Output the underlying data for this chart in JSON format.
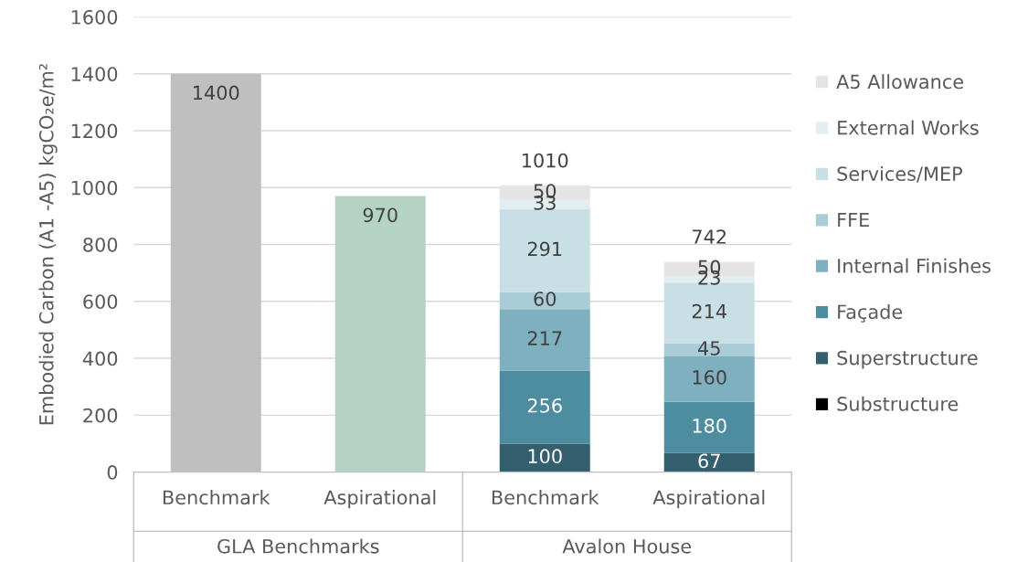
{
  "chart_data": {
    "type": "bar",
    "stacked": true,
    "ylabel": "Embodied Carbon (A1 -A5) kgCO₂e/m²",
    "categories": [
      "Benchmark",
      "Aspirational",
      "Benchmark",
      "Aspirational"
    ],
    "annotations": [
      "GLA Benchmarks",
      "Avalon House"
    ],
    "series": [
      {
        "colors": [
          "#bfbfbf",
          "#b5d3c5",
          "#bfbfbf",
          "#bfbfbf"
        ],
        "values": [
          1400,
          970,
          null,
          null
        ],
        "value_labels": [
          "1400",
          "970",
          null,
          null
        ]
      },
      {
        "name": "Substructure",
        "color": "#000000",
        "values": [
          null,
          null,
          null,
          null
        ],
        "value_labels": [
          null,
          null,
          null,
          null
        ]
      },
      {
        "name": "Superstructure",
        "color": "#345f6e",
        "values": [
          null,
          null,
          100,
          67
        ],
        "value_labels": [
          null,
          null,
          "100",
          "67"
        ]
      },
      {
        "name": "Façade",
        "color": "#4e8ca0",
        "values": [
          null,
          null,
          256,
          180
        ],
        "value_labels": [
          null,
          null,
          "256",
          "180"
        ]
      },
      {
        "name": "Internal Finishes",
        "color": "#7fb0c0",
        "values": [
          null,
          null,
          217,
          160
        ],
        "value_labels": [
          null,
          null,
          "217",
          "160"
        ]
      },
      {
        "name": "FFE",
        "color": "#a9ccd6",
        "values": [
          null,
          null,
          60,
          45
        ],
        "value_labels": [
          null,
          null,
          "60",
          "45"
        ]
      },
      {
        "name": "Services/MEP",
        "color": "#c9dfe6",
        "values": [
          null,
          null,
          291,
          214
        ],
        "value_labels": [
          null,
          null,
          "291",
          "214"
        ]
      },
      {
        "name": "External Works",
        "color": "#e3eef2",
        "values": [
          null,
          null,
          33,
          23
        ],
        "value_labels": [
          null,
          null,
          "33",
          "23"
        ]
      },
      {
        "name": "A5 Allowance",
        "color": "#e4e4e4",
        "values": [
          null,
          null,
          50,
          50
        ],
        "value_labels": [
          null,
          null,
          "50",
          "50"
        ]
      }
    ],
    "totals": [
      null,
      null,
      "1010",
      "742"
    ],
    "ylim": [
      0,
      1600
    ],
    "yticks": [
      0,
      200,
      400,
      600,
      800,
      1000,
      1200,
      1400,
      1600
    ],
    "grid": "y",
    "legend": "right"
  }
}
